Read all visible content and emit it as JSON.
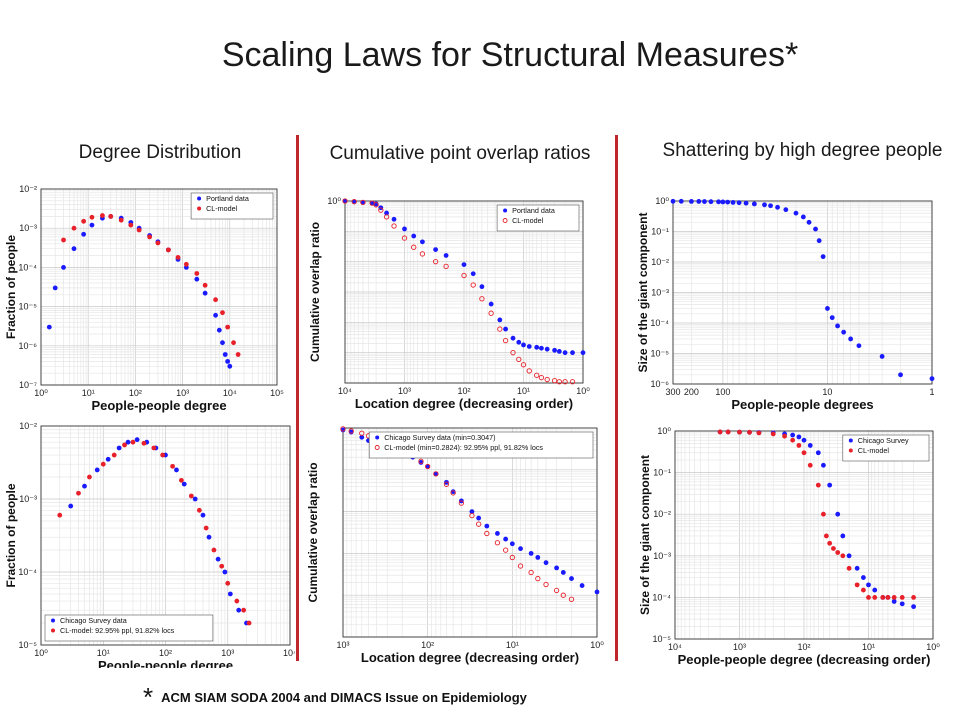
{
  "slide": {
    "title": "Scaling Laws for Structural Measures*",
    "col1_title": "Degree Distribution",
    "col2_title": "Cumulative point overlap ratios",
    "col3_title": "Shattering by high degree people",
    "footnote_mark": "*",
    "footnote_text": "ACM SIAM SODA 2004 and DIMACS Issue on Epidemiology"
  },
  "colors": {
    "blue": "#1a1aff",
    "red": "#e8202a",
    "divider": "#c0272d"
  },
  "chart_data": [
    {
      "id": "p1",
      "type": "scatter",
      "xlabel": "People-people degree",
      "ylabel": "Fraction of people",
      "xscale": "log",
      "yscale": "log",
      "xlim": [
        1,
        100000
      ],
      "ylim": [
        1e-07,
        0.01
      ],
      "xticks": [
        "10⁰",
        "10¹",
        "10²",
        "10³",
        "10⁴",
        "10⁵"
      ],
      "yticks": [
        "10⁻⁷",
        "10⁻⁶",
        "10⁻⁵",
        "10⁻⁴",
        "10⁻³",
        "10⁻²"
      ],
      "legend": "top-right",
      "series": [
        {
          "name": "Portland data",
          "marker": "dot",
          "color": "#1a1aff",
          "x": [
            1.5,
            2,
            3,
            5,
            8,
            12,
            20,
            30,
            50,
            80,
            120,
            200,
            300,
            500,
            800,
            1200,
            2000,
            3000,
            5000,
            6000,
            7000,
            8000,
            9000,
            10000
          ],
          "y": [
            3e-06,
            3e-05,
            0.0001,
            0.0003,
            0.0007,
            0.0012,
            0.0018,
            0.002,
            0.0018,
            0.0014,
            0.001,
            0.00065,
            0.00045,
            0.00028,
            0.00016,
            0.0001,
            5e-05,
            2.2e-05,
            6e-06,
            2.5e-06,
            1.2e-06,
            6e-07,
            4e-07,
            3e-07
          ]
        },
        {
          "name": "CL-model",
          "marker": "dot",
          "color": "#e8202a",
          "x": [
            3,
            5,
            8,
            12,
            20,
            30,
            50,
            80,
            120,
            200,
            300,
            500,
            800,
            1200,
            2000,
            3000,
            5000,
            7000,
            9000,
            12000,
            15000
          ],
          "y": [
            0.0005,
            0.001,
            0.0015,
            0.0019,
            0.0021,
            0.002,
            0.0016,
            0.0012,
            0.0009,
            0.0006,
            0.00042,
            0.00028,
            0.00018,
            0.00012,
            7e-05,
            3.5e-05,
            1.5e-05,
            7e-06,
            3e-06,
            1.2e-06,
            6e-07
          ]
        }
      ]
    },
    {
      "id": "p2",
      "type": "scatter",
      "xlabel": "Location degree (decreasing order)",
      "ylabel": "Cumulative overlap ratio",
      "xscale": "log",
      "yscale": "log",
      "xreversed": true,
      "xlim": [
        10000,
        1
      ],
      "ylim": [
        1e-06,
        1
      ],
      "xticks": [
        "10⁴",
        "10³",
        "10²",
        "10¹",
        "10⁰"
      ],
      "yticks": [
        "",
        "",
        "",
        "",
        "",
        "",
        "10⁰"
      ],
      "legend": "top-right",
      "series": [
        {
          "name": "Portland data",
          "marker": "dot",
          "color": "#1a1aff",
          "x": [
            10000,
            7000,
            5000,
            3500,
            3000,
            2500,
            2000,
            1500,
            1000,
            700,
            500,
            300,
            200,
            100,
            70,
            50,
            35,
            25,
            20,
            15,
            12,
            10,
            8,
            6,
            5,
            4,
            3,
            2.5,
            2,
            1.5,
            1
          ],
          "y": [
            1,
            0.95,
            0.9,
            0.85,
            0.8,
            0.6,
            0.4,
            0.25,
            0.12,
            0.07,
            0.045,
            0.025,
            0.016,
            0.008,
            0.004,
            0.0015,
            0.0004,
            0.00012,
            6e-05,
            3e-05,
            2.2e-05,
            1.8e-05,
            1.6e-05,
            1.5e-05,
            1.4e-05,
            1.3e-05,
            1.2e-05,
            1.1e-05,
            1e-05,
            1e-05,
            1e-05
          ]
        },
        {
          "name": "CL-model",
          "marker": "ring",
          "color": "#e8202a",
          "x": [
            10000,
            7000,
            5000,
            3500,
            3000,
            2500,
            2000,
            1500,
            1000,
            700,
            500,
            300,
            200,
            100,
            70,
            50,
            35,
            25,
            20,
            15,
            12,
            10,
            8,
            6,
            5,
            4,
            3,
            2.5,
            2,
            1.5
          ],
          "y": [
            1,
            0.95,
            0.9,
            0.85,
            0.75,
            0.5,
            0.3,
            0.15,
            0.06,
            0.03,
            0.018,
            0.01,
            0.007,
            0.0035,
            0.0017,
            0.0006,
            0.0002,
            6e-05,
            2.5e-05,
            1e-05,
            6e-06,
            4e-06,
            2.5e-06,
            1.8e-06,
            1.5e-06,
            1.3e-06,
            1.2e-06,
            1.1e-06,
            1.1e-06,
            1.1e-06
          ]
        }
      ]
    },
    {
      "id": "p3",
      "type": "scatter",
      "xlabel": "People-people degrees",
      "ylabel": "Size of the giant component",
      "xscale": "log",
      "yscale": "log",
      "xreversed": true,
      "xlim": [
        300,
        1
      ],
      "ylim": [
        1e-06,
        1
      ],
      "xticks": [
        "300",
        "200",
        "100",
        "10",
        "1"
      ],
      "yticks": [
        "10⁻⁶",
        "10⁻⁵",
        "10⁻⁴",
        "10⁻³",
        "10⁻²",
        "10⁻¹",
        "10⁰"
      ],
      "legend": "none",
      "series": [
        {
          "name": "",
          "marker": "dot",
          "color": "#1a1aff",
          "x": [
            300,
            250,
            200,
            170,
            150,
            130,
            110,
            100,
            90,
            80,
            70,
            60,
            50,
            40,
            35,
            30,
            25,
            20,
            17,
            15,
            13,
            12,
            11,
            10,
            9,
            8,
            7,
            6,
            5,
            3,
            2,
            1
          ],
          "y": [
            0.98,
            0.98,
            0.97,
            0.97,
            0.96,
            0.95,
            0.94,
            0.93,
            0.92,
            0.9,
            0.88,
            0.85,
            0.8,
            0.75,
            0.7,
            0.62,
            0.52,
            0.4,
            0.3,
            0.2,
            0.12,
            0.05,
            0.015,
            0.0003,
            0.00015,
            8e-05,
            5e-05,
            3e-05,
            1.8e-05,
            8e-06,
            2e-06,
            1.5e-06
          ]
        }
      ]
    },
    {
      "id": "p4",
      "type": "scatter",
      "xlabel": "People-people degree",
      "ylabel": "Fraction of people",
      "xscale": "log",
      "yscale": "log",
      "xlim": [
        1,
        10000
      ],
      "ylim": [
        1e-05,
        0.01
      ],
      "xticks": [
        "10⁰",
        "10¹",
        "10²",
        "10³",
        "10⁴"
      ],
      "yticks": [
        "10⁻⁵",
        "10⁻⁴",
        "10⁻³",
        "10⁻²"
      ],
      "legend": "bottom-left",
      "series": [
        {
          "name": "Chicago Survey data",
          "marker": "dot",
          "color": "#1a1aff",
          "x": [
            3,
            5,
            8,
            12,
            18,
            25,
            35,
            50,
            70,
            100,
            150,
            200,
            300,
            400,
            500,
            700,
            900,
            1100,
            1500,
            2000
          ],
          "y": [
            0.0008,
            0.0015,
            0.0025,
            0.0035,
            0.005,
            0.006,
            0.0065,
            0.006,
            0.005,
            0.004,
            0.0025,
            0.0016,
            0.001,
            0.0006,
            0.0003,
            0.00015,
            0.0001,
            5e-05,
            3e-05,
            2e-05
          ]
        },
        {
          "name": "CL-model: 92.95% ppl, 91.82% locs",
          "marker": "dot",
          "color": "#e8202a",
          "x": [
            2,
            4,
            6,
            10,
            15,
            22,
            30,
            45,
            65,
            90,
            130,
            180,
            260,
            350,
            450,
            600,
            800,
            1000,
            1400,
            1800,
            2200
          ],
          "y": [
            0.0006,
            0.0012,
            0.002,
            0.003,
            0.004,
            0.0055,
            0.006,
            0.0058,
            0.005,
            0.004,
            0.0028,
            0.0018,
            0.0011,
            0.0007,
            0.0004,
            0.0002,
            0.00012,
            7e-05,
            4e-05,
            3e-05,
            2e-05
          ]
        }
      ]
    },
    {
      "id": "p5",
      "type": "scatter",
      "xlabel": "Location degree (decreasing order)",
      "ylabel": "Cumulative overlap ratio",
      "xscale": "log",
      "yscale": "log",
      "xreversed": true,
      "xlim": [
        1000,
        1
      ],
      "ylim": [
        1e-05,
        1
      ],
      "xticks": [
        "10³",
        "10²",
        "10¹",
        "10⁰"
      ],
      "yticks": [
        "",
        "",
        "",
        "",
        "",
        ""
      ],
      "legend": "top-right",
      "series": [
        {
          "name": "Chicago Survey data (min=0.3047)",
          "marker": "dot",
          "color": "#1a1aff",
          "x": [
            1000,
            800,
            600,
            500,
            400,
            300,
            250,
            200,
            150,
            120,
            100,
            80,
            60,
            50,
            40,
            30,
            25,
            20,
            15,
            12,
            10,
            8,
            6,
            5,
            4,
            3,
            2.5,
            2,
            1.5,
            1
          ],
          "y": [
            0.9,
            0.8,
            0.6,
            0.5,
            0.45,
            0.4,
            0.3,
            0.25,
            0.2,
            0.15,
            0.12,
            0.08,
            0.05,
            0.03,
            0.018,
            0.01,
            0.007,
            0.0045,
            0.003,
            0.0022,
            0.0017,
            0.0013,
            0.001,
            0.0008,
            0.0006,
            0.00045,
            0.00035,
            0.00025,
            0.00017,
            0.00012
          ]
        },
        {
          "name": "CL-model (min=0.2824): 92.95% ppl, 91.82% locs",
          "marker": "ring",
          "color": "#e8202a",
          "x": [
            1000,
            800,
            600,
            500,
            400,
            300,
            250,
            200,
            150,
            120,
            100,
            80,
            60,
            50,
            40,
            30,
            25,
            20,
            15,
            12,
            10,
            8,
            6,
            5,
            4,
            3,
            2.5,
            2
          ],
          "y": [
            0.95,
            0.85,
            0.75,
            0.65,
            0.55,
            0.45,
            0.38,
            0.3,
            0.22,
            0.16,
            0.12,
            0.08,
            0.045,
            0.028,
            0.016,
            0.008,
            0.005,
            0.003,
            0.0018,
            0.0012,
            0.0008,
            0.0005,
            0.00035,
            0.00025,
            0.00018,
            0.00013,
            0.0001,
            8e-05
          ]
        }
      ]
    },
    {
      "id": "p6",
      "type": "scatter",
      "xlabel": "People-people degree (decreasing order)",
      "ylabel": "Size of the giant component",
      "xscale": "log",
      "yscale": "log",
      "xreversed": true,
      "xlim": [
        10000,
        1
      ],
      "ylim": [
        1e-05,
        1
      ],
      "xticks": [
        "10⁴",
        "10³",
        "10²",
        "10¹",
        "10⁰"
      ],
      "yticks": [
        "10⁻⁵",
        "10⁻⁴",
        "10⁻³",
        "10⁻²",
        "10⁻¹",
        "10⁰"
      ],
      "legend": "top-right",
      "series": [
        {
          "name": "Chicago Survey",
          "marker": "dot",
          "color": "#1a1aff",
          "x": [
            2000,
            1500,
            1000,
            700,
            500,
            300,
            200,
            150,
            120,
            100,
            80,
            60,
            50,
            40,
            30,
            25,
            20,
            15,
            12,
            10,
            8,
            6,
            5,
            4,
            3,
            2
          ],
          "y": [
            0.95,
            0.95,
            0.94,
            0.93,
            0.92,
            0.9,
            0.85,
            0.8,
            0.72,
            0.6,
            0.45,
            0.3,
            0.15,
            0.05,
            0.01,
            0.003,
            0.001,
            0.0005,
            0.0003,
            0.0002,
            0.00015,
            0.0001,
            0.0001,
            8e-05,
            7e-05,
            6e-05
          ]
        },
        {
          "name": "CL-model",
          "marker": "dot",
          "color": "#e8202a",
          "x": [
            2000,
            1500,
            1000,
            700,
            500,
            300,
            200,
            150,
            120,
            100,
            80,
            60,
            50,
            45,
            40,
            35,
            30,
            25,
            20,
            15,
            12,
            10,
            8,
            6,
            5,
            4,
            3,
            2
          ],
          "y": [
            0.95,
            0.95,
            0.94,
            0.93,
            0.9,
            0.85,
            0.75,
            0.6,
            0.45,
            0.3,
            0.15,
            0.05,
            0.01,
            0.003,
            0.002,
            0.0015,
            0.0012,
            0.001,
            0.0005,
            0.0002,
            0.00015,
            0.0001,
            0.0001,
            0.0001,
            0.0001,
            0.0001,
            0.0001,
            0.0001
          ]
        }
      ]
    }
  ]
}
